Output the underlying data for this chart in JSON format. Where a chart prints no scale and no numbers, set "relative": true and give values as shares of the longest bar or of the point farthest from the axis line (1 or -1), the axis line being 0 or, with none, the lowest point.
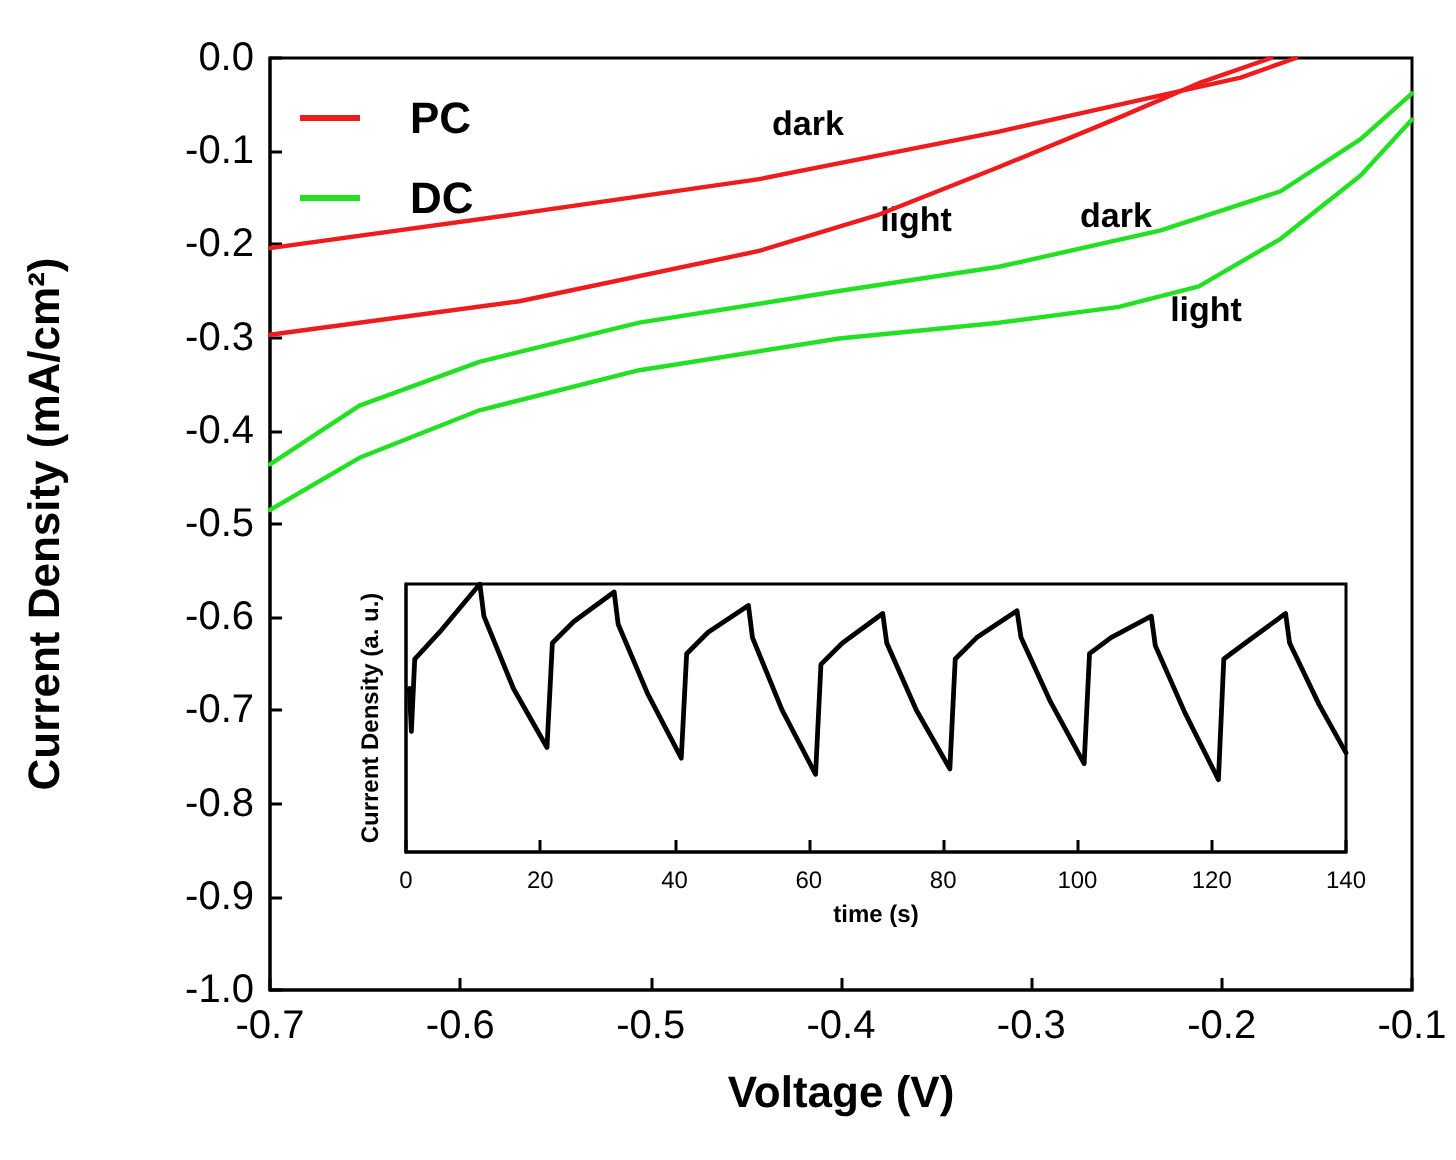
{
  "chart_data": [
    {
      "type": "line",
      "xlabel": "Voltage (V)",
      "ylabel": "Current Density (mA/cm²)",
      "xlim": [
        -0.7,
        -0.1
      ],
      "xticks": [
        -0.7,
        -0.6,
        -0.5,
        -0.4,
        -0.3,
        -0.2,
        -0.1
      ],
      "ylim": [
        -1.0,
        0.0
      ],
      "yticks": [
        {
          "value": 0,
          "label": "0.0"
        },
        -0.1,
        -0.2,
        -0.3,
        -0.4,
        -0.5,
        -0.6,
        -0.7,
        -0.8,
        -0.9,
        {
          "value": -1,
          "label": "-1.0"
        }
      ],
      "grid": false,
      "legend": "top left",
      "marker": "none",
      "line_style": "solid",
      "series": [
        {
          "name": "PC",
          "color": "#ee1c1c",
          "x": [
            -0.7,
            -0.569,
            -0.443,
            -0.317,
            -0.232,
            -0.19,
            -0.161
          ],
          "values": [
            -0.204,
            -0.167,
            -0.13,
            -0.079,
            -0.04,
            -0.021,
            0.0
          ]
        },
        {
          "color": "#ee1c1c",
          "x": [
            -0.7,
            -0.569,
            -0.443,
            -0.38,
            -0.317,
            -0.254,
            -0.212,
            -0.174
          ],
          "values": [
            -0.297,
            -0.261,
            -0.207,
            -0.168,
            -0.117,
            -0.064,
            -0.027,
            0.0
          ]
        },
        {
          "name": "DC",
          "color": "#22e022",
          "x": [
            -0.7,
            -0.653,
            -0.59,
            -0.506,
            -0.401,
            -0.317,
            -0.232,
            -0.169,
            -0.127,
            -0.1
          ],
          "values": [
            -0.436,
            -0.373,
            -0.326,
            -0.284,
            -0.25,
            -0.224,
            -0.185,
            -0.143,
            -0.087,
            -0.038
          ]
        },
        {
          "color": "#22e022",
          "x": [
            -0.7,
            -0.653,
            -0.59,
            -0.506,
            -0.401,
            -0.317,
            -0.254,
            -0.212,
            -0.169,
            -0.127,
            -0.1
          ],
          "values": [
            -0.485,
            -0.429,
            -0.378,
            -0.335,
            -0.301,
            -0.284,
            -0.267,
            -0.245,
            -0.194,
            -0.126,
            -0.066
          ]
        }
      ],
      "annotations": [
        "dark",
        "light",
        "dark",
        "light"
      ]
    },
    {
      "type": "line",
      "relative": true,
      "xlabel": "time (s)",
      "ylabel": "Current Density (a. u.)",
      "xlim": [
        0,
        140
      ],
      "xticks": [
        0,
        20,
        40,
        60,
        80,
        100,
        120,
        140
      ],
      "grid": false,
      "marker": "none",
      "series": [
        {
          "color": "#000000",
          "x": [
            0.5,
            0.8,
            1.3,
            5,
            11,
            11.6,
            16,
            21,
            21.8,
            25,
            31,
            31.6,
            36,
            41,
            41.8,
            45,
            51,
            51.6,
            56,
            61,
            61.8,
            65,
            71,
            71.6,
            76,
            81,
            81.8,
            85,
            91,
            91.6,
            96,
            101,
            101.8,
            105,
            111,
            111.6,
            116,
            121,
            121.8,
            125,
            131,
            131.6,
            136,
            140
          ],
          "values": [
            0.61,
            0.45,
            0.72,
            0.82,
            1.0,
            0.88,
            0.61,
            0.39,
            0.78,
            0.86,
            0.97,
            0.85,
            0.59,
            0.35,
            0.74,
            0.82,
            0.92,
            0.8,
            0.53,
            0.29,
            0.7,
            0.78,
            0.89,
            0.78,
            0.53,
            0.31,
            0.72,
            0.8,
            0.9,
            0.8,
            0.56,
            0.33,
            0.74,
            0.8,
            0.88,
            0.77,
            0.52,
            0.27,
            0.72,
            0.78,
            0.89,
            0.78,
            0.55,
            0.37
          ]
        }
      ]
    }
  ]
}
